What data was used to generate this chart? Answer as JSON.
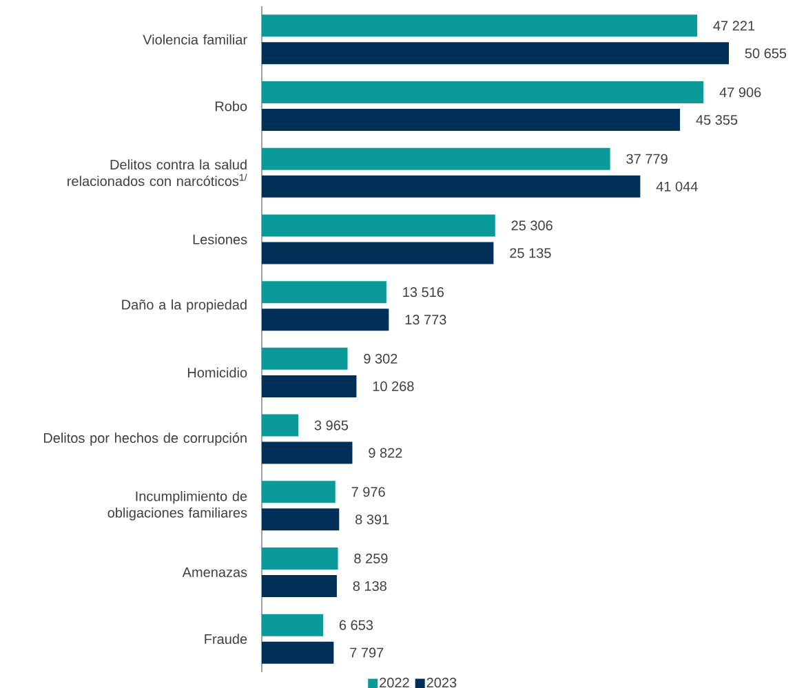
{
  "chart_data": {
    "type": "bar",
    "orientation": "horizontal",
    "categories": [
      "Violencia familiar",
      "Robo",
      "Delitos contra la salud relacionados con narcóticos$^{1/}$",
      "Lesiones",
      "Daño a la propiedad",
      "Homicidio",
      "Delitos por hechos de corrupción",
      "Incumplimiento de obligaciones familiares",
      "Amenazas",
      "Fraude"
    ],
    "series": [
      {
        "name": "2022",
        "color": "#0a9a9a",
        "values": [
          47221,
          47906,
          37779,
          25306,
          13516,
          9302,
          3965,
          7976,
          8259,
          6653
        ],
        "value_labels": [
          "47 221",
          "47 906",
          "37 779",
          "25 306",
          "13 516",
          "9 302",
          "3 965",
          "7 976",
          "8 259",
          "6 653"
        ]
      },
      {
        "name": "2023",
        "color": "#003057",
        "values": [
          50655,
          45355,
          41044,
          25135,
          13773,
          10268,
          9822,
          8391,
          8138,
          7797
        ],
        "value_labels": [
          "50 655",
          "45 355",
          "41 044",
          "25 135",
          "13 773",
          "10 268",
          "9 822",
          "8 391",
          "8 138",
          "7 797"
        ]
      }
    ],
    "legend": "bottom"
  }
}
